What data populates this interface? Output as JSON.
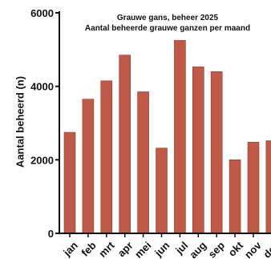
{
  "chart_data": {
    "type": "bar",
    "title": "Grauwe gans, beheer 2025",
    "subtitle": "Aantal beheerde grauwe ganzen per maand",
    "xlabel": "",
    "ylabel": "Aantal beheerd (n)",
    "categories": [
      "jan",
      "feb",
      "mrt",
      "apr",
      "mei",
      "jun",
      "jul",
      "aug",
      "sep",
      "okt",
      "nov",
      "dec"
    ],
    "values": [
      2750,
      3650,
      4150,
      4850,
      3850,
      2320,
      5250,
      4530,
      4400,
      2000,
      2480,
      2520
    ],
    "ylim": [
      0,
      6000
    ],
    "yticks": [
      0,
      2000,
      4000,
      6000
    ],
    "ytick_labels": [
      "0",
      "2000",
      "4000",
      "6000"
    ],
    "grid": false,
    "legend": "none",
    "colors": {
      "bar": "#bf5a48",
      "bar_edge": "#8f3a2c",
      "axis": "#111111",
      "text": "#111111"
    }
  }
}
